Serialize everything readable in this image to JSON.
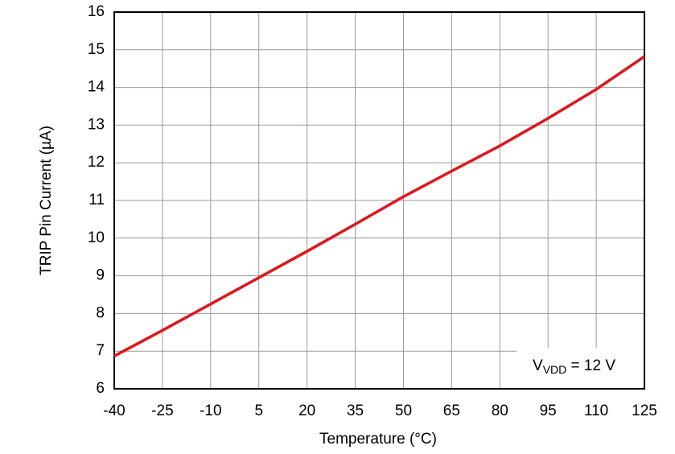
{
  "chart_data": {
    "type": "line",
    "x_label": "Temperature (°C)",
    "y_label": "TRIP Pin Current (µA)",
    "x": [
      -40,
      -25,
      -10,
      5,
      20,
      35,
      50,
      65,
      80,
      95,
      110,
      125
    ],
    "series": [
      {
        "name": "TRIP Pin Current",
        "color": "#e3151b",
        "values": [
          6.87,
          7.55,
          8.25,
          8.95,
          9.65,
          10.37,
          11.1,
          11.78,
          12.45,
          13.18,
          13.95,
          14.82
        ]
      }
    ],
    "xlim": [
      -40,
      125
    ],
    "xticks": [
      -40,
      -25,
      -10,
      5,
      20,
      35,
      50,
      65,
      80,
      95,
      110,
      125
    ],
    "ylim": [
      6,
      16
    ],
    "yticks": [
      6,
      7,
      8,
      9,
      10,
      11,
      12,
      13,
      14,
      15,
      16
    ],
    "grid": true,
    "annotation": {
      "symbol": "V",
      "subscript": "VDD",
      "text": " = 12 V"
    }
  }
}
